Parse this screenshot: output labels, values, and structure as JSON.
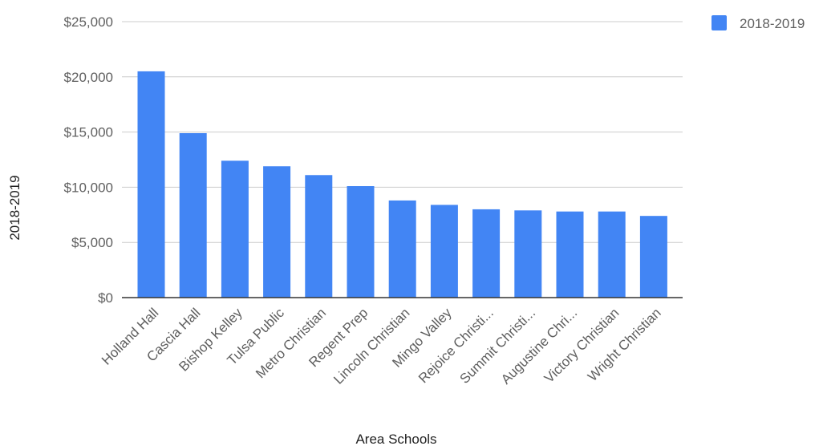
{
  "chart_data": {
    "type": "bar",
    "title": "",
    "xlabel": "Area Schools",
    "ylabel": "2018-2019",
    "ylim": [
      0,
      25000
    ],
    "yticks": [
      0,
      5000,
      10000,
      15000,
      20000,
      25000
    ],
    "ytick_labels": [
      "$0",
      "$5,000",
      "$10,000",
      "$15,000",
      "$20,000",
      "$25,000"
    ],
    "categories": [
      "Holland Hall",
      "Cascia Hall",
      "Bishop Kelley",
      "Tulsa Public",
      "Metro Christian",
      "Regent Prep",
      "Lincoln Christian",
      "Mingo Valley",
      "Rejoice Christi...",
      "Summit Christi...",
      "Augustine Chri...",
      "Victory Christian",
      "Wright Christian"
    ],
    "series": [
      {
        "name": "2018-2019",
        "color": "#4285f4",
        "values": [
          20500,
          14900,
          12400,
          11900,
          11100,
          10100,
          8800,
          8400,
          8000,
          7900,
          7800,
          7800,
          7400
        ]
      }
    ],
    "grid": true,
    "legend_position": "top-right"
  }
}
